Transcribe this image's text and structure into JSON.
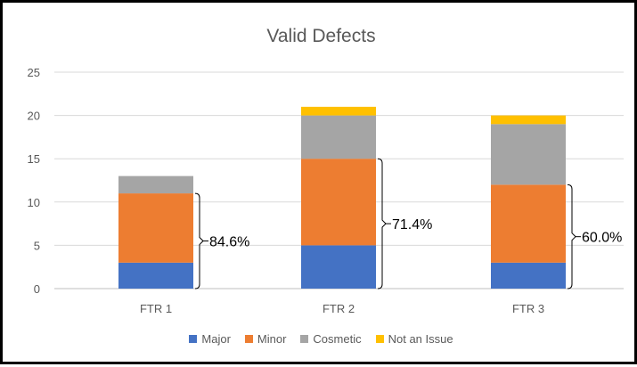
{
  "chart_data": {
    "type": "bar",
    "stacked": true,
    "title": "Valid Defects",
    "categories": [
      "FTR 1",
      "FTR 2",
      "FTR 3"
    ],
    "series": [
      {
        "name": "Major",
        "color": "#4472C4",
        "values": [
          3,
          5,
          3
        ]
      },
      {
        "name": "Minor",
        "color": "#ED7D31",
        "values": [
          8,
          10,
          9
        ]
      },
      {
        "name": "Cosmetic",
        "color": "#A5A5A5",
        "values": [
          2,
          5,
          7
        ]
      },
      {
        "name": "Not an Issue",
        "color": "#FFC000",
        "values": [
          0,
          1,
          1
        ]
      }
    ],
    "ylim": [
      0,
      25
    ],
    "yticks": [
      "0",
      "5",
      "10",
      "15",
      "20",
      "25"
    ],
    "grid": true,
    "legend_position": "bottom",
    "annotations": [
      {
        "category": "FTR 1",
        "text": "84.6%",
        "from": 0,
        "to": 11
      },
      {
        "category": "FTR 2",
        "text": "71.4%",
        "from": 0,
        "to": 15
      },
      {
        "category": "FTR 3",
        "text": "60.0%",
        "from": 0,
        "to": 12
      }
    ]
  }
}
